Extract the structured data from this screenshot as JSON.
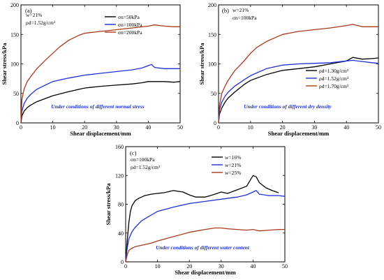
{
  "chart_data": [
    {
      "type": "line",
      "panel": "(a)",
      "params": [
        "w=21%",
        "ρd=1.52g/cm³"
      ],
      "xlabel": "Shear displacement/mm",
      "ylabel": "Shear stress/kPa",
      "xlim": [
        0,
        50
      ],
      "ylim": [
        0,
        200
      ],
      "xticks": [
        0,
        10,
        20,
        30,
        40,
        50
      ],
      "yticks": [
        0,
        50,
        100,
        150,
        200
      ],
      "legend_position": "top-right",
      "annotation": "Under conditions of different normal stress",
      "series": [
        {
          "name": "σn=50kPa",
          "color": "#000000",
          "x": [
            0,
            0.3,
            1,
            2,
            3,
            5,
            8,
            10,
            15,
            20,
            25,
            30,
            35,
            38,
            40,
            42,
            45,
            48,
            50
          ],
          "y": [
            0,
            12,
            20,
            26,
            30,
            36,
            42,
            46,
            53,
            59,
            62,
            64,
            66,
            68,
            70,
            70,
            70,
            69,
            70
          ]
        },
        {
          "name": "σn=100kPa",
          "color": "#1f2fd6",
          "x": [
            0,
            0.3,
            1,
            2,
            3,
            5,
            8,
            10,
            15,
            20,
            25,
            30,
            35,
            38,
            40,
            41,
            42,
            45,
            48,
            50
          ],
          "y": [
            0,
            20,
            33,
            42,
            48,
            57,
            65,
            70,
            76,
            81,
            84,
            87,
            90,
            93,
            97,
            99,
            94,
            92,
            92,
            92
          ]
        },
        {
          "name": "σn=200kPa",
          "color": "#a83a1c",
          "x": [
            0,
            0.3,
            1,
            2,
            3,
            5,
            8,
            10,
            12,
            15,
            18,
            20,
            25,
            30,
            35,
            40,
            42,
            45,
            48,
            50
          ],
          "y": [
            0,
            40,
            58,
            70,
            78,
            92,
            108,
            118,
            128,
            140,
            148,
            152,
            155,
            158,
            161,
            164,
            166,
            164,
            163,
            163
          ]
        }
      ]
    },
    {
      "type": "line",
      "panel": "(b)",
      "params": [
        "w=21%",
        "σn=100kPa"
      ],
      "xlabel": "Shear displacement/mm",
      "ylabel": "Shear stress/kPa",
      "xlim": [
        0,
        50
      ],
      "ylim": [
        0,
        200
      ],
      "xticks": [
        0,
        10,
        20,
        30,
        40,
        50
      ],
      "yticks": [
        0,
        50,
        100,
        150,
        200
      ],
      "legend_position": "bottom-right",
      "annotation": "Under conditions of different dry density",
      "series": [
        {
          "name": "ρd=1.30g/cm³",
          "color": "#000000",
          "x": [
            0,
            0.3,
            1,
            2,
            3,
            5,
            8,
            10,
            15,
            20,
            25,
            30,
            35,
            40,
            42,
            45,
            48,
            50
          ],
          "y": [
            0,
            15,
            25,
            35,
            42,
            52,
            65,
            72,
            82,
            89,
            92,
            95,
            100,
            105,
            111,
            108,
            109,
            110
          ]
        },
        {
          "name": "ρd=1.52g/cm³",
          "color": "#1f2fd6",
          "x": [
            0,
            0.3,
            1,
            2,
            3,
            5,
            8,
            10,
            15,
            20,
            25,
            30,
            35,
            40,
            42,
            45,
            48,
            50
          ],
          "y": [
            0,
            22,
            35,
            45,
            52,
            62,
            73,
            80,
            92,
            98,
            100,
            101,
            102,
            105,
            106,
            104,
            102,
            101
          ]
        },
        {
          "name": "ρd=1.70g/cm³",
          "color": "#a83a1c",
          "x": [
            0,
            0.3,
            1,
            2,
            3,
            5,
            8,
            10,
            12,
            15,
            20,
            25,
            30,
            35,
            40,
            42,
            45,
            48,
            50
          ],
          "y": [
            0,
            30,
            50,
            62,
            72,
            88,
            105,
            118,
            128,
            138,
            150,
            155,
            158,
            161,
            165,
            167,
            163,
            163,
            163
          ]
        }
      ]
    },
    {
      "type": "line",
      "panel": "(c)",
      "params": [
        "σn=100kPa",
        "ρd=1.52g/cm³"
      ],
      "xlabel": "Shear displacement/mm",
      "ylabel": "Shear stress/kPa",
      "xlim": [
        0,
        50
      ],
      "ylim": [
        0,
        160
      ],
      "xticks": [
        0,
        10,
        20,
        30,
        40,
        50
      ],
      "yticks": [
        0,
        40,
        80,
        120,
        160
      ],
      "legend_position": "top-right",
      "annotation": "Under conditions of different water content",
      "series": [
        {
          "name": "w=16%",
          "color": "#000000",
          "x": [
            0,
            0.5,
            1,
            1.5,
            2,
            3,
            4,
            5,
            6,
            8,
            10,
            12,
            15,
            18,
            20,
            22,
            25,
            28,
            30,
            32,
            35,
            38,
            40,
            41,
            42,
            44,
            46,
            48
          ],
          "y": [
            0,
            30,
            55,
            70,
            78,
            85,
            88,
            90,
            92,
            94,
            95,
            96,
            99,
            97,
            93,
            90,
            90,
            94,
            97,
            95,
            100,
            105,
            120,
            118,
            110,
            103,
            99,
            96
          ]
        },
        {
          "name": "w=21%",
          "color": "#1f2fd6",
          "x": [
            0,
            0.5,
            1,
            2,
            3,
            5,
            8,
            10,
            15,
            20,
            25,
            30,
            35,
            38,
            40,
            41,
            42,
            45,
            48,
            50
          ],
          "y": [
            0,
            20,
            32,
            42,
            48,
            57,
            65,
            70,
            76,
            81,
            84,
            87,
            90,
            93,
            97,
            99,
            94,
            92,
            92,
            91
          ]
        },
        {
          "name": "w=25%",
          "color": "#a83a1c",
          "x": [
            0,
            0.5,
            1,
            2,
            3,
            5,
            8,
            10,
            15,
            20,
            25,
            28,
            30,
            32,
            35,
            38,
            40,
            42,
            45,
            48,
            50
          ],
          "y": [
            0,
            10,
            16,
            19,
            21,
            23,
            26,
            29,
            35,
            41,
            45,
            47,
            47,
            46,
            45,
            44,
            45,
            43,
            44,
            45,
            45
          ]
        }
      ]
    }
  ]
}
